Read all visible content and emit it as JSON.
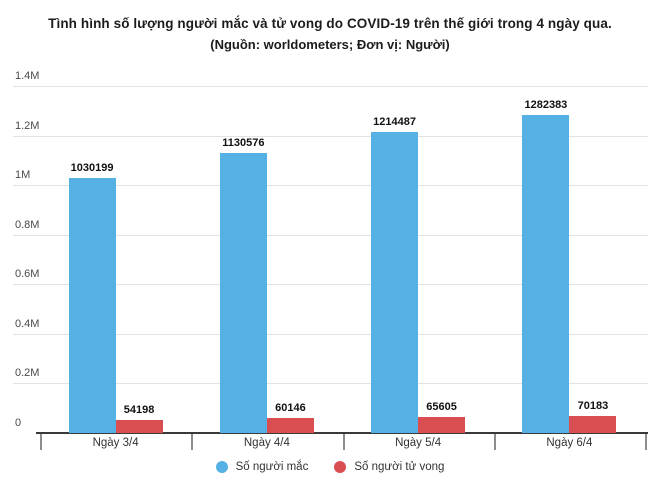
{
  "title": "Tình hình số lượng người mắc và tử vong do COVID-19 trên thế giới trong 4 ngày qua.",
  "subtitle": "(Nguồn: worldometers; Đơn vị: Người)",
  "chart_data": {
    "type": "bar",
    "categories": [
      "Ngày 3/4",
      "Ngày 4/4",
      "Ngày 5/4",
      "Ngày 6/4"
    ],
    "series": [
      {
        "name": "Số người mắc",
        "color": "#55b1e3",
        "values": [
          1030199,
          1130576,
          1214487,
          1282383
        ]
      },
      {
        "name": "Số người tử vong",
        "color": "#d94f51",
        "values": [
          54198,
          60146,
          65605,
          70183
        ]
      }
    ],
    "ylabel": "",
    "xlabel": "",
    "ylim": [
      0,
      1400000
    ],
    "ytick_interval": 200000,
    "ytick_labels": [
      "0",
      "0.2M",
      "0.4M",
      "0.6M",
      "0.8M",
      "1M",
      "1.2M",
      "1.4M"
    ],
    "grid": true,
    "legend_position": "bottom"
  },
  "colors": {
    "grid": "#e2e2e2",
    "axis_line": "#3a3a3a",
    "tick": "#8d8d8d",
    "y_label": "#4a4a4a",
    "x_label": "#333333",
    "value_label": "#111111"
  }
}
